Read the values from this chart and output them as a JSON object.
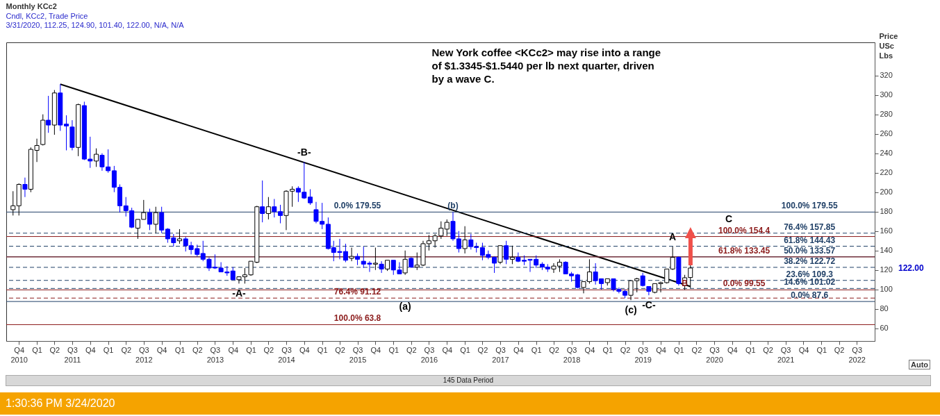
{
  "chart_data": {
    "type": "candlestick",
    "title": "Monthly KCc2",
    "subtitle": "Cndl, KCc2, Trade Price\n3/31/2020, 112.25, 124.90, 101.40, 122.00, N/A, N/A",
    "ylabel": "Price USc Lbs",
    "x": [
      "2010-09",
      "2010-10",
      "2010-11",
      "2010-12",
      "2011-01",
      "2011-02",
      "2011-03",
      "2011-04",
      "2011-05",
      "2011-06",
      "2011-07",
      "2011-08",
      "2011-09",
      "2011-10",
      "2011-11",
      "2011-12",
      "2012-01",
      "2012-02",
      "2012-03",
      "2012-04",
      "2012-05",
      "2012-06",
      "2012-07",
      "2012-08",
      "2012-09",
      "2012-10",
      "2012-11",
      "2012-12",
      "2013-01",
      "2013-02",
      "2013-03",
      "2013-04",
      "2013-05",
      "2013-06",
      "2013-07",
      "2013-08",
      "2013-09",
      "2013-10",
      "2013-11",
      "2013-12",
      "2014-01",
      "2014-02",
      "2014-03",
      "2014-04",
      "2014-05",
      "2014-06",
      "2014-07",
      "2014-08",
      "2014-09",
      "2014-10",
      "2014-11",
      "2014-12",
      "2015-01",
      "2015-02",
      "2015-03",
      "2015-04",
      "2015-05",
      "2015-06",
      "2015-07",
      "2015-08",
      "2015-09",
      "2015-10",
      "2015-11",
      "2015-12",
      "2016-01",
      "2016-02",
      "2016-03",
      "2016-04",
      "2016-05",
      "2016-06",
      "2016-07",
      "2016-08",
      "2016-09",
      "2016-10",
      "2016-11",
      "2016-12",
      "2017-01",
      "2017-02",
      "2017-03",
      "2017-04",
      "2017-05",
      "2017-06",
      "2017-07",
      "2017-08",
      "2017-09",
      "2017-10",
      "2017-11",
      "2017-12",
      "2018-01",
      "2018-02",
      "2018-03",
      "2018-04",
      "2018-05",
      "2018-06",
      "2018-07",
      "2018-08",
      "2018-09",
      "2018-10",
      "2018-11",
      "2018-12",
      "2019-01",
      "2019-02",
      "2019-03",
      "2019-04",
      "2019-05",
      "2019-06",
      "2019-07",
      "2019-08",
      "2019-09",
      "2019-10",
      "2019-11",
      "2019-12",
      "2020-01",
      "2020-02",
      "2020-03"
    ],
    "ohlc": [
      [
        182,
        201,
        176,
        186
      ],
      [
        186,
        209,
        176,
        208
      ],
      [
        208,
        215,
        195,
        203
      ],
      [
        203,
        246,
        200,
        244
      ],
      [
        243,
        255,
        231,
        248
      ],
      [
        249,
        280,
        248,
        274
      ],
      [
        274,
        299,
        261,
        269
      ],
      [
        269,
        305,
        259,
        302
      ],
      [
        302,
        311,
        263,
        269
      ],
      [
        270,
        279,
        243,
        268
      ],
      [
        267,
        274,
        243,
        246
      ],
      [
        246,
        291,
        237,
        290
      ],
      [
        289,
        293,
        233,
        234
      ],
      [
        234,
        257,
        225,
        232
      ],
      [
        232,
        245,
        226,
        239
      ],
      [
        238,
        240,
        222,
        226
      ],
      [
        226,
        244,
        220,
        222
      ],
      [
        222,
        227,
        200,
        205
      ],
      [
        205,
        208,
        179,
        186
      ],
      [
        186,
        195,
        175,
        181
      ],
      [
        181,
        184,
        163,
        164
      ],
      [
        163,
        172,
        152,
        172
      ],
      [
        172,
        192,
        172,
        179
      ],
      [
        179,
        183,
        161,
        167
      ],
      [
        167,
        185,
        158,
        179
      ],
      [
        179,
        185,
        158,
        161
      ],
      [
        162,
        163,
        148,
        152
      ],
      [
        153,
        157,
        144,
        148
      ],
      [
        150,
        162,
        147,
        152
      ],
      [
        152,
        154,
        139,
        145
      ],
      [
        145,
        149,
        136,
        141
      ],
      [
        142,
        146,
        134,
        136
      ],
      [
        137,
        150,
        129,
        131
      ],
      [
        131,
        133,
        119,
        122
      ],
      [
        123,
        136,
        121,
        122
      ],
      [
        122,
        128,
        118,
        118
      ],
      [
        118,
        124,
        114,
        117
      ],
      [
        119,
        123,
        110,
        110
      ],
      [
        110,
        113,
        106,
        113
      ],
      [
        113,
        122,
        106,
        115
      ],
      [
        115,
        129,
        114,
        129
      ],
      [
        128,
        186,
        127,
        185
      ],
      [
        185,
        212,
        169,
        178
      ],
      [
        178,
        195,
        172,
        185
      ],
      [
        185,
        193,
        174,
        180
      ],
      [
        180,
        187,
        168,
        176
      ],
      [
        176,
        202,
        161,
        201
      ],
      [
        201,
        206,
        185,
        203
      ],
      [
        204,
        206,
        190,
        200
      ],
      [
        200,
        231,
        193,
        194
      ],
      [
        195,
        203,
        187,
        189
      ],
      [
        182,
        190,
        168,
        170
      ],
      [
        170,
        189,
        162,
        167
      ],
      [
        167,
        174,
        141,
        142
      ],
      [
        143,
        150,
        129,
        138
      ],
      [
        139,
        152,
        131,
        138
      ],
      [
        139,
        147,
        128,
        130
      ],
      [
        132,
        143,
        129,
        134
      ],
      [
        134,
        137,
        125,
        131
      ],
      [
        129,
        144,
        122,
        126
      ],
      [
        127,
        129,
        118,
        126
      ],
      [
        126,
        143,
        120,
        127
      ],
      [
        126,
        129,
        117,
        121
      ],
      [
        121,
        130,
        119,
        130
      ],
      [
        130,
        130,
        115,
        120
      ],
      [
        120,
        128,
        116,
        116
      ],
      [
        117,
        140,
        115,
        131
      ],
      [
        132,
        133,
        122,
        123
      ],
      [
        123,
        138,
        120,
        125
      ],
      [
        125,
        150,
        124,
        147
      ],
      [
        147,
        156,
        140,
        150
      ],
      [
        150,
        157,
        143,
        155
      ],
      [
        155,
        170,
        152,
        163
      ],
      [
        162,
        172,
        155,
        169
      ],
      [
        170,
        179.55,
        150,
        152
      ],
      [
        152,
        160,
        138,
        142
      ],
      [
        142,
        165,
        137,
        151
      ],
      [
        151,
        157,
        141,
        144
      ],
      [
        144,
        148,
        138,
        143
      ],
      [
        143,
        148,
        130,
        135
      ],
      [
        136,
        140,
        131,
        133
      ],
      [
        133,
        134,
        117,
        127
      ],
      [
        128,
        145,
        126,
        145
      ],
      [
        145,
        150,
        126,
        131
      ],
      [
        131,
        145,
        126,
        133
      ],
      [
        133,
        138,
        128,
        129
      ],
      [
        130,
        135,
        125,
        129
      ],
      [
        131,
        131,
        118,
        130
      ],
      [
        131,
        135,
        122,
        125
      ],
      [
        126,
        128,
        120,
        123
      ],
      [
        123,
        126,
        118,
        121
      ],
      [
        121,
        127,
        117,
        124
      ],
      [
        124,
        131,
        118,
        128
      ],
      [
        128,
        129,
        116,
        116
      ],
      [
        116,
        118,
        108,
        114
      ],
      [
        115,
        116,
        101,
        102
      ],
      [
        102,
        108,
        96,
        108
      ],
      [
        108,
        131,
        106,
        118
      ],
      [
        118,
        127,
        105,
        109
      ],
      [
        111,
        111,
        100,
        106
      ],
      [
        107,
        111,
        104,
        111
      ],
      [
        111,
        111,
        98,
        100
      ],
      [
        100,
        102,
        96,
        98
      ],
      [
        98,
        100,
        91,
        94
      ],
      [
        94,
        109,
        89,
        109
      ],
      [
        109,
        112,
        97,
        111
      ],
      [
        114,
        117,
        103,
        104
      ],
      [
        103,
        103,
        94,
        98
      ],
      [
        97,
        106,
        96,
        106
      ],
      [
        106,
        108,
        97,
        107
      ],
      [
        107,
        121,
        106,
        121
      ],
      [
        121,
        144,
        120,
        133
      ],
      [
        133,
        134,
        104,
        106
      ],
      [
        104,
        115,
        99.55,
        112
      ],
      [
        112.25,
        124.9,
        101.4,
        122.0
      ]
    ],
    "series": [
      {
        "type": "line",
        "x": [
          "2011-05",
          "2020-03"
        ],
        "values": [
          311,
          103
        ],
        "color": "#000000"
      }
    ],
    "xlim": [
      "2010-08-15",
      "2022-09-13"
    ],
    "ylim": [
      47,
      354
    ],
    "xticks": [
      {
        "value": "2010-10",
        "label": "Q4\n2010"
      },
      {
        "value": "2011-01",
        "label": "Q1"
      },
      {
        "value": "2011-04",
        "label": "Q2"
      },
      {
        "value": "2011-07",
        "label": "Q3\n2011"
      },
      {
        "value": "2011-10",
        "label": "Q4"
      },
      {
        "value": "2012-01",
        "label": "Q1"
      },
      {
        "value": "2012-04",
        "label": "Q2"
      },
      {
        "value": "2012-07",
        "label": "Q3\n2012"
      },
      {
        "value": "2012-10",
        "label": "Q4"
      },
      {
        "value": "2013-01",
        "label": "Q1"
      },
      {
        "value": "2013-04",
        "label": "Q2"
      },
      {
        "value": "2013-07",
        "label": "Q3\n2013"
      },
      {
        "value": "2013-10",
        "label": "Q4"
      },
      {
        "value": "2014-01",
        "label": "Q1"
      },
      {
        "value": "2014-04",
        "label": "Q2"
      },
      {
        "value": "2014-07",
        "label": "Q3\n2014"
      },
      {
        "value": "2014-10",
        "label": "Q4"
      },
      {
        "value": "2015-01",
        "label": "Q1"
      },
      {
        "value": "2015-04",
        "label": "Q2"
      },
      {
        "value": "2015-07",
        "label": "Q3\n2015"
      },
      {
        "value": "2015-10",
        "label": "Q4"
      },
      {
        "value": "2016-01",
        "label": "Q1"
      },
      {
        "value": "2016-04",
        "label": "Q2"
      },
      {
        "value": "2016-07",
        "label": "Q3\n2016"
      },
      {
        "value": "2016-10",
        "label": "Q4"
      },
      {
        "value": "2017-01",
        "label": "Q1"
      },
      {
        "value": "2017-04",
        "label": "Q2"
      },
      {
        "value": "2017-07",
        "label": "Q3\n2017"
      },
      {
        "value": "2017-10",
        "label": "Q4"
      },
      {
        "value": "2018-01",
        "label": "Q1"
      },
      {
        "value": "2018-04",
        "label": "Q2"
      },
      {
        "value": "2018-07",
        "label": "Q3\n2018"
      },
      {
        "value": "2018-10",
        "label": "Q4"
      },
      {
        "value": "2019-01",
        "label": "Q1"
      },
      {
        "value": "2019-04",
        "label": "Q2"
      },
      {
        "value": "2019-07",
        "label": "Q3\n2019"
      },
      {
        "value": "2019-10",
        "label": "Q4"
      },
      {
        "value": "2020-01",
        "label": "Q1"
      },
      {
        "value": "2020-04",
        "label": "Q2"
      },
      {
        "value": "2020-07",
        "label": "Q3\n2020"
      },
      {
        "value": "2020-10",
        "label": "Q4"
      },
      {
        "value": "2021-01",
        "label": "Q1"
      },
      {
        "value": "2021-04",
        "label": "Q2"
      },
      {
        "value": "2021-07",
        "label": "Q3\n2021"
      },
      {
        "value": "2021-10",
        "label": "Q4"
      },
      {
        "value": "2022-01",
        "label": "Q1"
      },
      {
        "value": "2022-04",
        "label": "Q2"
      },
      {
        "value": "2022-07",
        "label": "Q3\n2022"
      }
    ],
    "yticks": [
      60,
      80,
      100,
      120,
      140,
      160,
      180,
      200,
      220,
      240,
      260,
      280,
      300,
      320
    ],
    "ref_lines": [
      {
        "axis": "y",
        "value": 179.55,
        "color": "#1f3f66",
        "line_style": "solid"
      },
      {
        "axis": "y",
        "value": 157.85,
        "color": "#1f3f66",
        "line_style": "dashed"
      },
      {
        "axis": "y",
        "value": 154.4,
        "color": "#8b1a1a",
        "line_style": "solid"
      },
      {
        "axis": "y",
        "value": 144.43,
        "color": "#1f3f66",
        "line_style": "dashed"
      },
      {
        "axis": "y",
        "value": 133.57,
        "color": "#1f3f66",
        "line_style": "solid"
      },
      {
        "axis": "y",
        "value": 133.45,
        "color": "#8b1a1a",
        "line_style": "solid"
      },
      {
        "axis": "y",
        "value": 122.72,
        "color": "#1f3f66",
        "line_style": "dashed"
      },
      {
        "axis": "y",
        "value": 109.3,
        "color": "#1f3f66",
        "line_style": "dashed"
      },
      {
        "axis": "y",
        "value": 101.02,
        "color": "#1f3f66",
        "line_style": "dashed"
      },
      {
        "axis": "y",
        "value": 99.55,
        "color": "#8b1a1a",
        "line_style": "solid"
      },
      {
        "axis": "y",
        "value": 91.12,
        "color": "#8b1a1a",
        "line_style": "dashed"
      },
      {
        "axis": "y",
        "value": 87.6,
        "color": "#1f3f66",
        "line_style": "solid"
      },
      {
        "axis": "y",
        "value": 63.8,
        "color": "#8b1a1a",
        "line_style": "solid"
      }
    ],
    "annotations": [
      "New York coffee <KCc2> may rise into a range\nof $1.3345-$1.5440 per lb next quarter, driven\nby a wave C.",
      "145 Data Period",
      "1:30:36 PM 3/24/2020",
      "Auto",
      {
        "text": "-A-",
        "x": "2013-11",
        "y": 106
      },
      {
        "text": "-B-",
        "x": "2014-10",
        "y": 231
      },
      {
        "text": "(b)",
        "x": "2016-11",
        "y": 179.55
      },
      {
        "text": "A",
        "x": "2019-12",
        "y": 144
      },
      {
        "text": "B",
        "x": "2020-02",
        "y": 99.55
      },
      "C",
      {
        "text": "(a)",
        "x": "2016-03",
        "y": 93
      },
      {
        "text": "(c)",
        "x": "2019-05",
        "y": 89
      },
      {
        "text": "-C-",
        "x": "2019-08",
        "y": 94
      },
      "122.00",
      {
        "text": "100.0% 179.55",
        "x": "2021-11",
        "y": 179.55
      },
      {
        "text": "76.4% 157.85",
        "x": "2021-11",
        "y": 157.85
      },
      {
        "text": "61.8% 144.43",
        "x": "2021-11",
        "y": 144.43
      },
      {
        "text": "50.0% 133.57",
        "x": "2021-11",
        "y": 133.57
      },
      {
        "text": "38.2% 122.72",
        "x": "2021-11",
        "y": 122.72
      },
      {
        "text": "23.6% 109.3",
        "x": "2021-11",
        "y": 109.3
      },
      {
        "text": "14.6% 101.02",
        "x": "2021-11",
        "y": 101.02
      },
      {
        "text": "0.0% 87.6",
        "x": "2021-11",
        "y": 87.6
      },
      {
        "text": "100.0% 154.4",
        "x": "2020-12",
        "y": 154.4
      },
      {
        "text": "61.8% 133.45",
        "x": "2020-12",
        "y": 133.45
      },
      {
        "text": "0.0% 99.55",
        "x": "2020-12",
        "y": 99.55
      },
      {
        "text": "0.0% 179.55",
        "x": "2015-07",
        "y": 179.55
      },
      {
        "text": "76.4% 91.12",
        "x": "2015-07",
        "y": 91.12
      },
      {
        "text": "100.0% 63.8",
        "x": "2015-07",
        "y": 63.8
      }
    ]
  }
}
